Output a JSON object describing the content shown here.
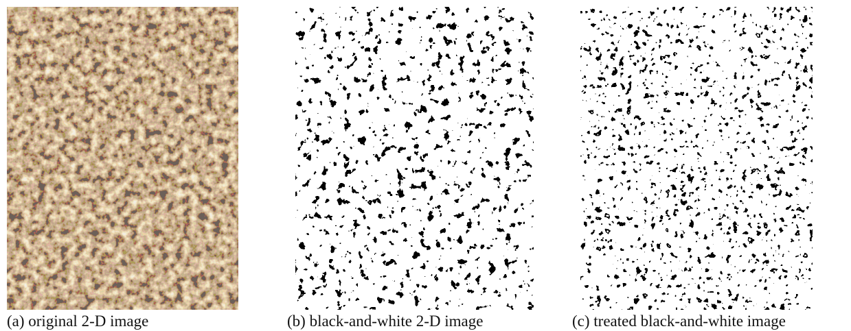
{
  "figure": {
    "panels": [
      {
        "caption": "(a) original 2-D image"
      },
      {
        "caption": "(b) black-and-white 2-D image"
      },
      {
        "caption": "(c) treated black-and-white image"
      }
    ]
  }
}
